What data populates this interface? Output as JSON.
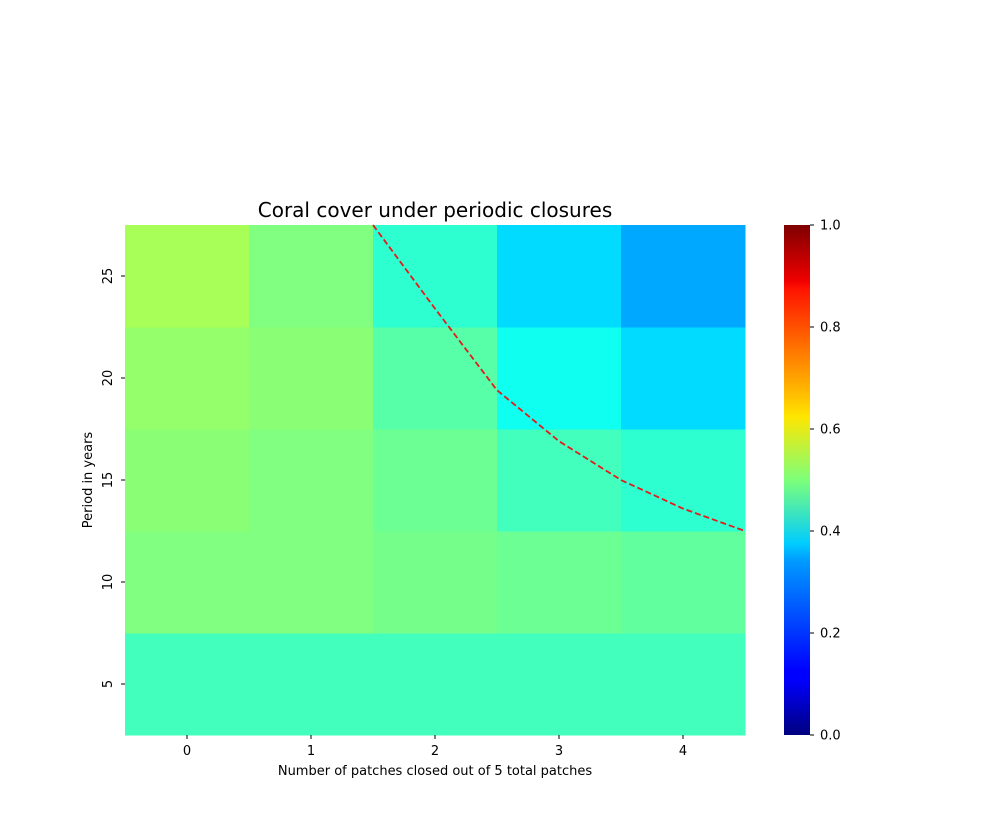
{
  "chart_data": {
    "type": "heatmap",
    "title": "Coral cover under periodic closures",
    "xlabel": "Number of patches closed out of 5 total patches",
    "ylabel": "Period in years",
    "x_categories": [
      "0",
      "1",
      "2",
      "3",
      "4"
    ],
    "y_categories": [
      "5",
      "10",
      "15",
      "20",
      "25"
    ],
    "values": [
      [
        0.44,
        0.44,
        0.44,
        0.44,
        0.44
      ],
      [
        0.5,
        0.5,
        0.49,
        0.48,
        0.47
      ],
      [
        0.51,
        0.5,
        0.48,
        0.44,
        0.42
      ],
      [
        0.52,
        0.51,
        0.46,
        0.39,
        0.34
      ],
      [
        0.54,
        0.5,
        0.42,
        0.34,
        0.29
      ]
    ],
    "colormap": "jet",
    "vmin": 0.0,
    "vmax": 1.0,
    "colorbar": {
      "ticks": [
        "0.0",
        "0.2",
        "0.4",
        "0.6",
        "0.8",
        "1.0"
      ],
      "range": [
        0.0,
        1.0
      ]
    },
    "annotation_curve": {
      "style": "dashed",
      "color": "#e41a1c",
      "description_points": [
        {
          "x": 1.5,
          "y": 27.5
        },
        {
          "x": 2.0,
          "y": 23.4
        },
        {
          "x": 2.5,
          "y": 19.4
        },
        {
          "x": 3.0,
          "y": 16.9
        },
        {
          "x": 3.5,
          "y": 15.0
        },
        {
          "x": 4.0,
          "y": 13.6
        },
        {
          "x": 4.5,
          "y": 12.5
        }
      ]
    },
    "grid": false
  }
}
